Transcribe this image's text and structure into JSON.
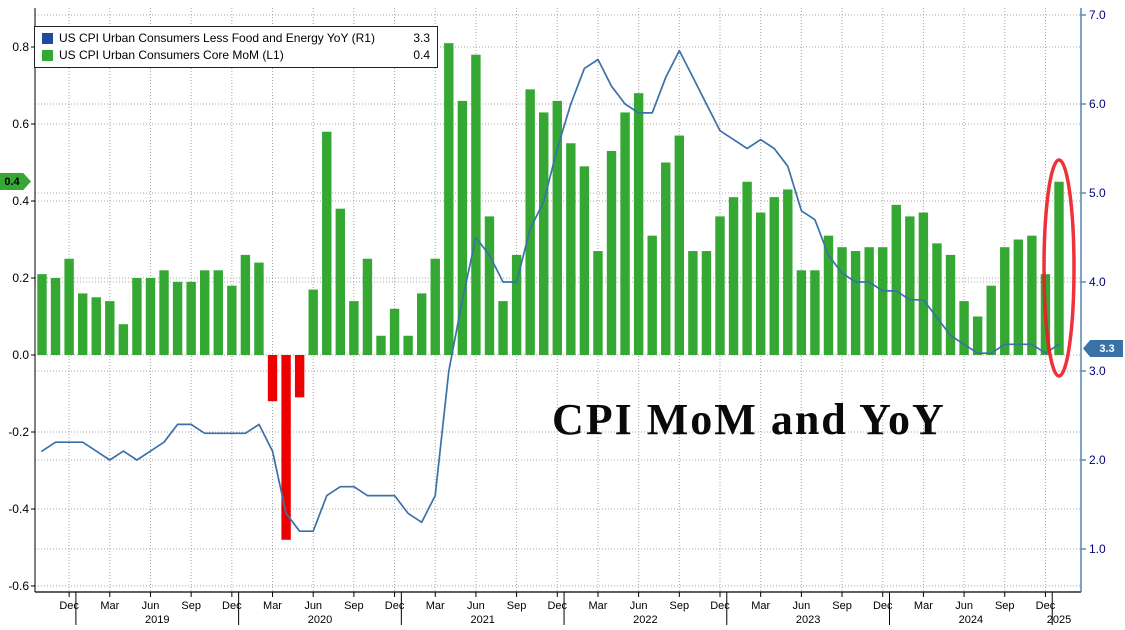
{
  "annotation": {
    "title": "CPI MoM and YoY"
  },
  "legend": {
    "items": [
      {
        "swatch_color": "#1b4a9e",
        "label": "US CPI Urban Consumers Less Food and Energy YoY (R1)",
        "value": "3.3"
      },
      {
        "swatch_color": "#34a832",
        "label": "US CPI Urban Consumers Core MoM (L1)",
        "value": "0.4"
      }
    ]
  },
  "badges": {
    "left_last_value": "0.4",
    "right_last_value": "3.3"
  },
  "colors": {
    "bar_positive": "#34a832",
    "bar_negative": "#ee0000",
    "line": "#3a72a8",
    "left_badge_bg": "#34a832",
    "right_badge_bg": "#3a72a8",
    "grid": "#a6a6a6",
    "axis_left_label": "#000000",
    "axis_right_label": "#000080",
    "axis_bottom_label": "#000000",
    "highlight": "#ed1c24"
  },
  "chart_data": {
    "type": "combo",
    "title": "CPI MoM and YoY",
    "x": [
      "2018-10",
      "2018-11",
      "2018-12",
      "2019-01",
      "2019-02",
      "2019-03",
      "2019-04",
      "2019-05",
      "2019-06",
      "2019-07",
      "2019-08",
      "2019-09",
      "2019-10",
      "2019-11",
      "2019-12",
      "2020-01",
      "2020-02",
      "2020-03",
      "2020-04",
      "2020-05",
      "2020-06",
      "2020-07",
      "2020-08",
      "2020-09",
      "2020-10",
      "2020-11",
      "2020-12",
      "2021-01",
      "2021-02",
      "2021-03",
      "2021-04",
      "2021-05",
      "2021-06",
      "2021-07",
      "2021-08",
      "2021-09",
      "2021-10",
      "2021-11",
      "2021-12",
      "2022-01",
      "2022-02",
      "2022-03",
      "2022-04",
      "2022-05",
      "2022-06",
      "2022-07",
      "2022-08",
      "2022-09",
      "2022-10",
      "2022-11",
      "2022-12",
      "2023-01",
      "2023-02",
      "2023-03",
      "2023-04",
      "2023-05",
      "2023-06",
      "2023-07",
      "2023-08",
      "2023-09",
      "2023-10",
      "2023-11",
      "2023-12",
      "2024-01",
      "2024-02",
      "2024-03",
      "2024-04",
      "2024-05",
      "2024-06",
      "2024-07",
      "2024-08",
      "2024-09",
      "2024-10",
      "2024-11",
      "2024-12",
      "2025-01"
    ],
    "series": [
      {
        "name": "US CPI Urban Consumers Less Food and Energy YoY (R1)",
        "type": "line",
        "axis": "right",
        "color": "#3a72a8",
        "last_value": 3.3,
        "values": [
          2.1,
          2.2,
          2.2,
          2.2,
          2.1,
          2.0,
          2.1,
          2.0,
          2.1,
          2.2,
          2.4,
          2.4,
          2.3,
          2.3,
          2.3,
          2.3,
          2.4,
          2.1,
          1.4,
          1.2,
          1.2,
          1.6,
          1.7,
          1.7,
          1.6,
          1.6,
          1.6,
          1.4,
          1.3,
          1.6,
          3.0,
          3.8,
          4.5,
          4.3,
          4.0,
          4.0,
          4.6,
          4.9,
          5.5,
          6.0,
          6.4,
          6.5,
          6.2,
          6.0,
          5.9,
          5.9,
          6.3,
          6.6,
          6.3,
          6.0,
          5.7,
          5.6,
          5.5,
          5.6,
          5.5,
          5.3,
          4.8,
          4.7,
          4.3,
          4.1,
          4.0,
          4.0,
          3.9,
          3.9,
          3.8,
          3.8,
          3.6,
          3.4,
          3.3,
          3.2,
          3.2,
          3.3,
          3.3,
          3.3,
          3.2,
          3.3
        ]
      },
      {
        "name": "US CPI Urban Consumers Core MoM (L1)",
        "type": "bar",
        "axis": "left",
        "color": "#34a832",
        "negative_color": "#ee0000",
        "last_value": 0.4,
        "values": [
          0.21,
          0.2,
          0.25,
          0.16,
          0.15,
          0.14,
          0.08,
          0.2,
          0.2,
          0.22,
          0.19,
          0.19,
          0.22,
          0.22,
          0.18,
          0.26,
          0.24,
          -0.12,
          -0.48,
          -0.11,
          0.17,
          0.58,
          0.38,
          0.14,
          0.25,
          0.05,
          0.12,
          0.05,
          0.16,
          0.25,
          0.81,
          0.66,
          0.78,
          0.36,
          0.14,
          0.26,
          0.69,
          0.63,
          0.66,
          0.55,
          0.49,
          0.27,
          0.53,
          0.63,
          0.68,
          0.31,
          0.5,
          0.57,
          0.27,
          0.27,
          0.36,
          0.41,
          0.45,
          0.37,
          0.41,
          0.43,
          0.22,
          0.22,
          0.31,
          0.28,
          0.27,
          0.28,
          0.28,
          0.39,
          0.36,
          0.37,
          0.29,
          0.26,
          0.14,
          0.1,
          0.18,
          0.28,
          0.3,
          0.31,
          0.21,
          0.45
        ]
      }
    ],
    "left_axis": {
      "ticks": [
        0.8,
        0.6,
        0.4,
        0.2,
        0,
        -0.2,
        -0.4,
        -0.6
      ],
      "min": -0.62,
      "max": 0.9
    },
    "right_axis": {
      "ticks": [
        7,
        6,
        5,
        4,
        3,
        2,
        1
      ],
      "min": 0.5,
      "max": 7.05
    },
    "x_axis": {
      "first_tick_index": 2,
      "month_tick_every": 3,
      "month_tick_labels": [
        "Dec",
        "Mar",
        "Jun",
        "Sep"
      ],
      "years": [
        {
          "label": "2019",
          "i": 8.5
        },
        {
          "label": "2020",
          "i": 20.5
        },
        {
          "label": "2021",
          "i": 32.5
        },
        {
          "label": "2022",
          "i": 44.5
        },
        {
          "label": "2023",
          "i": 56.5
        },
        {
          "label": "2024",
          "i": 68.5
        },
        {
          "label": "2025",
          "i": 75
        }
      ],
      "year_separator_indices": [
        2.5,
        14.5,
        26.5,
        38.5,
        50.5,
        62.5,
        74.5
      ]
    },
    "grid": "dotted",
    "legend_position": "top-left",
    "highlight": {
      "type": "ellipse",
      "index": 75,
      "cy": 268,
      "rx": 15,
      "ry": 108,
      "color": "#ed1c24"
    }
  }
}
